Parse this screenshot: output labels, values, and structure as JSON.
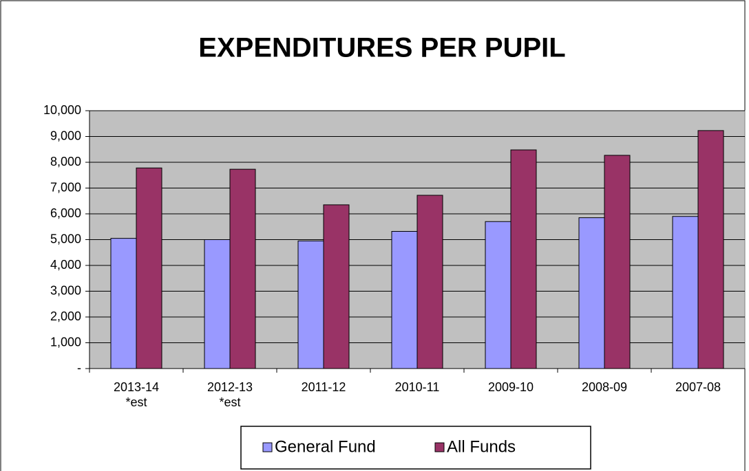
{
  "chart_data": {
    "type": "bar",
    "title": "EXPENDITURES PER PUPIL",
    "categories": [
      "2013-14\n*est",
      "2012-13\n*est",
      "2011-12",
      "2010-11",
      "2009-10",
      "2008-09",
      "2007-08"
    ],
    "series": [
      {
        "name": "General Fund",
        "color": "#9999ff",
        "values": [
          5050,
          5000,
          4950,
          5320,
          5700,
          5850,
          5900
        ]
      },
      {
        "name": "All Funds",
        "color": "#993366",
        "values": [
          7780,
          7730,
          6350,
          6720,
          8480,
          8270,
          9230
        ]
      }
    ],
    "ylim": [
      0,
      10000
    ],
    "yticks": [
      {
        "value": 0,
        "label": "-"
      },
      {
        "value": 1000,
        "label": "1,000"
      },
      {
        "value": 2000,
        "label": "2,000"
      },
      {
        "value": 3000,
        "label": "3,000"
      },
      {
        "value": 4000,
        "label": "4,000"
      },
      {
        "value": 5000,
        "label": "5,000"
      },
      {
        "value": 6000,
        "label": "6,000"
      },
      {
        "value": 7000,
        "label": "7,000"
      },
      {
        "value": 8000,
        "label": "8,000"
      },
      {
        "value": 9000,
        "label": "9,000"
      },
      {
        "value": 10000,
        "label": "10,000"
      }
    ],
    "grid": true,
    "legend": "bottom"
  }
}
